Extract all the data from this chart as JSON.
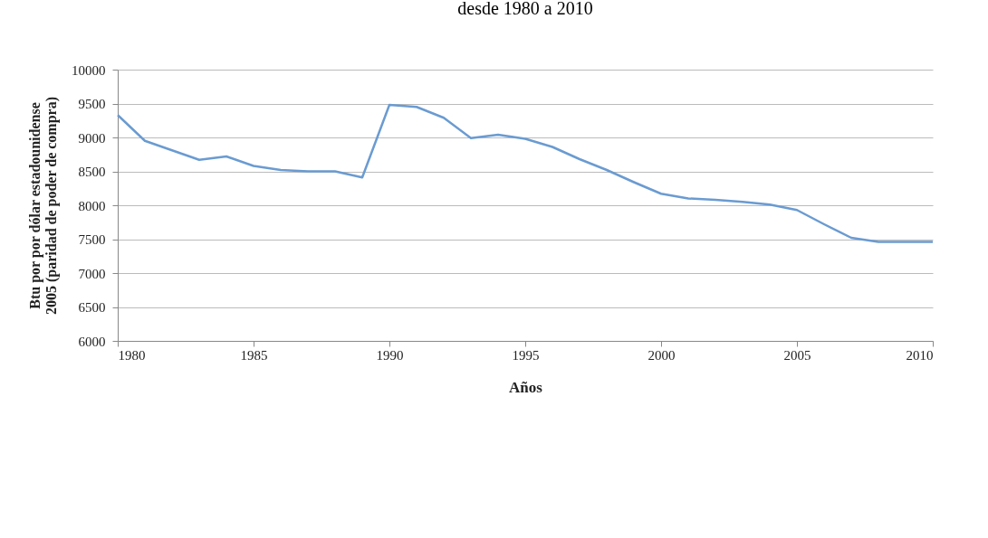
{
  "chart_data": {
    "type": "line",
    "title": "desde 1980 a 2010",
    "xlabel": "Años",
    "ylabel": "Btu por por dólar estadounidense 2005 (paridad  de poder de compra)",
    "x": [
      1980,
      1981,
      1982,
      1983,
      1984,
      1985,
      1986,
      1987,
      1988,
      1989,
      1990,
      1991,
      1992,
      1993,
      1994,
      1995,
      1996,
      1997,
      1998,
      1999,
      2000,
      2001,
      2002,
      2003,
      2004,
      2005,
      2006,
      2007,
      2008,
      2009,
      2010
    ],
    "series": [
      {
        "color": "#6a9bd1",
        "values": [
          9330,
          8950,
          8810,
          8670,
          8720,
          8580,
          8520,
          8500,
          8500,
          8410,
          9480,
          9450,
          9290,
          8990,
          9040,
          8980,
          8860,
          8680,
          8520,
          8340,
          8170,
          8100,
          8080,
          8050,
          8010,
          7930,
          7720,
          7520,
          7460,
          7460,
          7460
        ]
      }
    ],
    "xlim": [
      1980,
      2010
    ],
    "xticks": [
      1980,
      1985,
      1990,
      1995,
      2000,
      2005,
      2010
    ],
    "ylim": [
      6000,
      10000
    ],
    "yticks": [
      6000,
      6500,
      7000,
      7500,
      8000,
      8500,
      9000,
      9500,
      10000
    ],
    "grid": "y",
    "marker": "none",
    "line_style": "solid"
  }
}
